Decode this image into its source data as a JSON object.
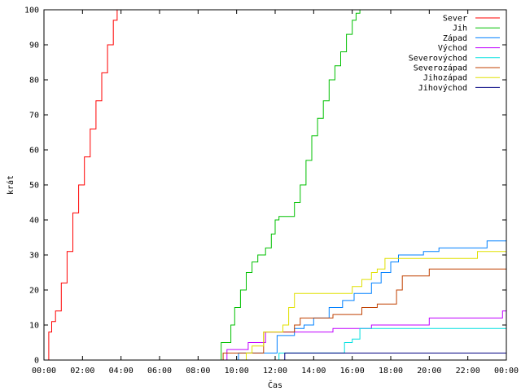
{
  "chart_data": {
    "type": "line",
    "title": "",
    "xlabel": "Čas",
    "ylabel": "krát",
    "xlim": [
      0,
      24
    ],
    "ylim": [
      0,
      100
    ],
    "grid": false,
    "legend_placement": "top-right",
    "x_tick_labels": [
      "00:00",
      "02:00",
      "04:00",
      "06:00",
      "08:00",
      "10:00",
      "12:00",
      "14:00",
      "16:00",
      "18:00",
      "20:00",
      "22:00",
      "00:00"
    ],
    "x_tick_values": [
      0,
      2,
      4,
      6,
      8,
      10,
      12,
      14,
      16,
      18,
      20,
      22,
      24
    ],
    "y_tick_labels": [
      "0",
      "10",
      "20",
      "30",
      "40",
      "50",
      "60",
      "70",
      "80",
      "90",
      "100"
    ],
    "y_tick_values": [
      0,
      10,
      20,
      30,
      40,
      50,
      60,
      70,
      80,
      90,
      100
    ],
    "series": [
      {
        "name": "Sever",
        "color": "#ff0000",
        "x": [
          0,
          0.25,
          0.4,
          0.6,
          0.9,
          1.2,
          1.5,
          1.8,
          2.1,
          2.4,
          2.7,
          3.0,
          3.3,
          3.6,
          3.8
        ],
        "values": [
          0,
          8,
          11,
          14,
          22,
          31,
          42,
          50,
          58,
          66,
          74,
          82,
          90,
          97,
          100
        ]
      },
      {
        "name": "Jih",
        "color": "#00c000",
        "x": [
          0,
          9.0,
          9.2,
          9.5,
          9.7,
          9.9,
          10.2,
          10.5,
          10.8,
          11.1,
          11.5,
          11.8,
          12.0,
          12.2,
          12.8,
          13.0,
          13.3,
          13.6,
          13.9,
          14.2,
          14.5,
          14.8,
          15.1,
          15.4,
          15.7,
          16.0,
          16.2,
          16.4
        ],
        "values": [
          0,
          0,
          5,
          5,
          10,
          15,
          20,
          25,
          28,
          30,
          32,
          36,
          40,
          41,
          41,
          45,
          50,
          57,
          64,
          69,
          74,
          80,
          84,
          88,
          93,
          97,
          99,
          100
        ]
      },
      {
        "name": "Západ",
        "color": "#0080ff",
        "x": [
          0,
          10.0,
          10.1,
          12.0,
          12.1,
          13.0,
          13.5,
          14.0,
          14.8,
          15.5,
          16.1,
          17.0,
          17.5,
          18.0,
          18.4,
          19.0,
          19.7,
          20.5,
          23.0,
          24.0
        ],
        "values": [
          0,
          0,
          2,
          2,
          7,
          9,
          10,
          12,
          15,
          17,
          19,
          22,
          25,
          28,
          30,
          30,
          31,
          32,
          34,
          34
        ]
      },
      {
        "name": "Východ",
        "color": "#c000ff",
        "x": [
          0,
          9.2,
          9.5,
          10.0,
          10.6,
          11.5,
          12.8,
          13.5,
          15.0,
          16.5,
          17.0,
          19.0,
          20.0,
          22.0,
          23.0,
          23.8,
          24.0
        ],
        "values": [
          0,
          0,
          3,
          3,
          5,
          8,
          8,
          8,
          9,
          9,
          10,
          10,
          12,
          12,
          12,
          14,
          14
        ]
      },
      {
        "name": "Severovýchod",
        "color": "#00e0e0",
        "x": [
          0,
          12.1,
          12.2,
          15.5,
          15.6,
          15.8,
          16.0,
          16.4,
          24.0
        ],
        "values": [
          0,
          0,
          2,
          2,
          5,
          5,
          6,
          9,
          9
        ]
      },
      {
        "name": "Severozápad",
        "color": "#c04000",
        "x": [
          0,
          9.2,
          9.3,
          9.6,
          10.0,
          11.4,
          11.5,
          11.8,
          12.8,
          13.0,
          13.3,
          13.6,
          15.0,
          16.0,
          16.5,
          17.3,
          18.3,
          18.6,
          18.9,
          20.0,
          22.0,
          24.0
        ],
        "values": [
          0,
          0,
          2,
          2,
          2,
          8,
          8,
          8,
          8,
          10,
          12,
          12,
          13,
          13,
          15,
          16,
          20,
          24,
          24,
          26,
          26,
          27
        ]
      },
      {
        "name": "Jihozápad",
        "color": "#e0e000",
        "x": [
          0,
          10.3,
          10.5,
          10.8,
          11.4,
          11.7,
          12.0,
          12.4,
          12.7,
          13.0,
          14.0,
          15.0,
          16.0,
          16.5,
          17.0,
          17.3,
          17.7,
          18.2,
          20.0,
          22.5,
          24.0
        ],
        "values": [
          0,
          0,
          2,
          4,
          8,
          8,
          8,
          10,
          15,
          19,
          19,
          19,
          21,
          23,
          25,
          26,
          29,
          29,
          29,
          31,
          33
        ]
      },
      {
        "name": "Jihovýchod",
        "color": "#000080",
        "x": [
          0,
          12.4,
          12.5,
          24.0
        ],
        "values": [
          0,
          0,
          2,
          2
        ]
      }
    ]
  }
}
